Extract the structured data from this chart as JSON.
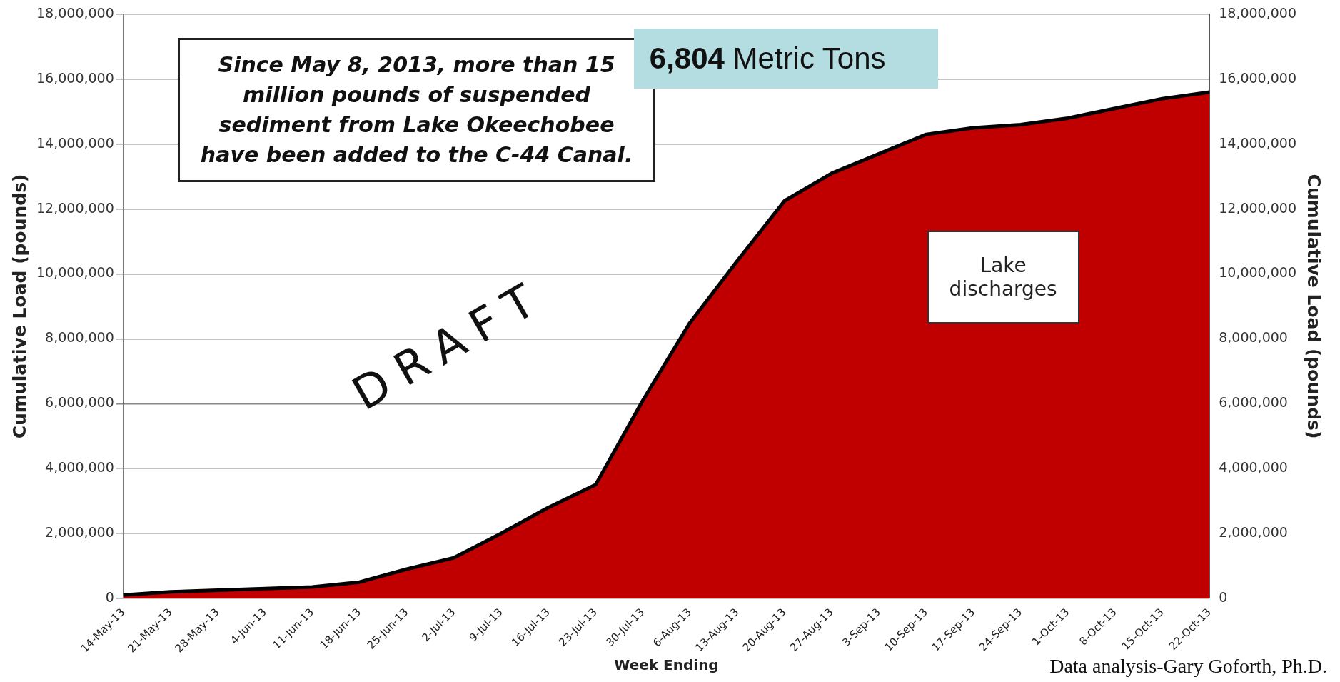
{
  "chart_data": {
    "type": "area",
    "categories": [
      "14-May-13",
      "21-May-13",
      "28-May-13",
      "4-Jun-13",
      "11-Jun-13",
      "18-Jun-13",
      "25-Jun-13",
      "2-Jul-13",
      "9-Jul-13",
      "16-Jul-13",
      "23-Jul-13",
      "30-Jul-13",
      "6-Aug-13",
      "13-Aug-13",
      "20-Aug-13",
      "27-Aug-13",
      "3-Sep-13",
      "10-Sep-13",
      "17-Sep-13",
      "24-Sep-13",
      "1-Oct-13",
      "8-Oct-13",
      "15-Oct-13",
      "22-Oct-13"
    ],
    "series": [
      {
        "color": "#c00000",
        "values": [
          100000,
          200000,
          250000,
          300000,
          350000,
          500000,
          900000,
          1250000,
          2000000,
          2800000,
          3500000,
          6100000,
          8500000,
          10400000,
          12250000,
          13100000,
          13700000,
          14300000,
          14500000,
          14600000,
          14800000,
          15100000,
          15400000,
          15600000
        ]
      }
    ],
    "xlabel": "Week Ending",
    "ylabel": "Cumulative Load (pounds)",
    "y2label": "Cumulative Load (pounds)",
    "ylim": [
      0,
      18000000
    ],
    "yticks": [
      0,
      {
        "value": 2000000,
        "label": "2,000,000"
      },
      {
        "value": 4000000,
        "label": "4,000,000"
      },
      {
        "value": 6000000,
        "label": "6,000,000"
      },
      {
        "value": 8000000,
        "label": "8,000,000"
      },
      {
        "value": 10000000,
        "label": "10,000,000"
      },
      {
        "value": 12000000,
        "label": "12,000,000"
      },
      {
        "value": 14000000,
        "label": "14,000,000"
      },
      {
        "value": 16000000,
        "label": "16,000,000"
      },
      {
        "value": 18000000,
        "label": "18,000,000"
      }
    ],
    "y2lim": [
      0,
      18000000
    ],
    "y2ticks": [
      0,
      {
        "value": 2000000,
        "label": "2,000,000"
      },
      {
        "value": 4000000,
        "label": "4,000,000"
      },
      {
        "value": 6000000,
        "label": "6,000,000"
      },
      {
        "value": 8000000,
        "label": "8,000,000"
      },
      {
        "value": 10000000,
        "label": "10,000,000"
      },
      {
        "value": 12000000,
        "label": "12,000,000"
      },
      {
        "value": 14000000,
        "label": "14,000,000"
      },
      {
        "value": 16000000,
        "label": "16,000,000"
      },
      {
        "value": 18000000,
        "label": "18,000,000"
      }
    ],
    "grid": "y",
    "legend": false,
    "annotations": [
      "Since May 8, 2013, more than 15 million pounds of suspended sediment from Lake Okeechobee have been added to the C-44 Canal.",
      "6,804 Metric Tons",
      "Lake discharges",
      "DRAFT",
      "Data analysis-Gary Goforth, Ph.D."
    ]
  }
}
